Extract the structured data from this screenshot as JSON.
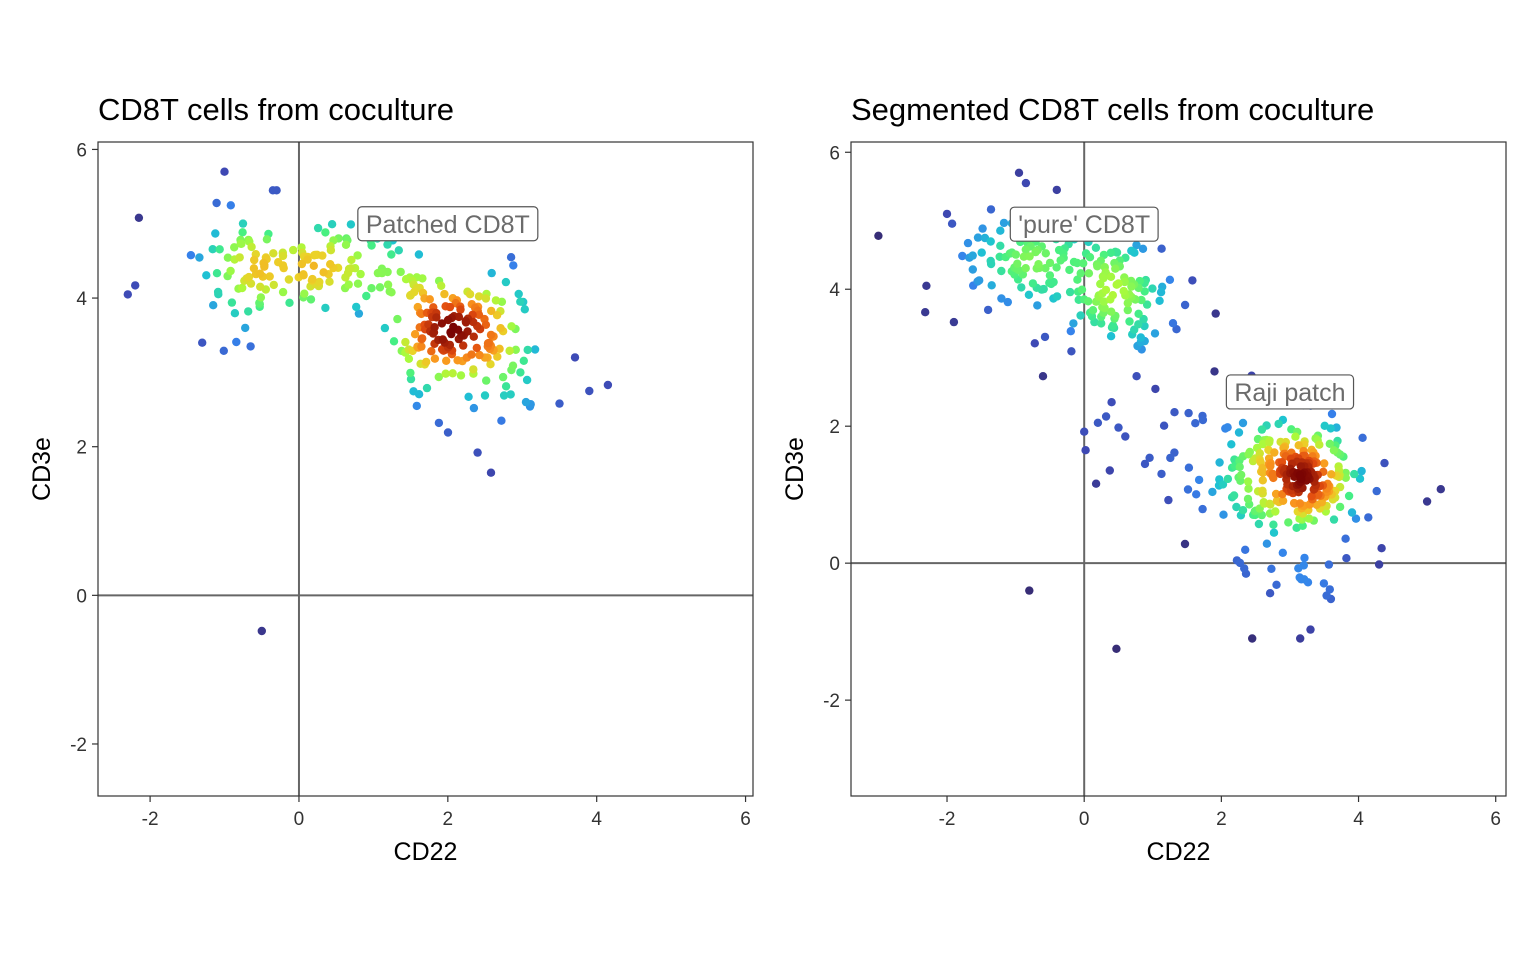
{
  "chart_data": [
    {
      "type": "scatter",
      "title": "CD8T cells from coculture",
      "xlabel": "CD22",
      "ylabel": "CD3e",
      "xlim": [
        -2.7,
        6.1
      ],
      "ylim": [
        -2.7,
        6.1
      ],
      "xticks": [
        -2,
        0,
        2,
        4,
        6
      ],
      "yticks": [
        -2,
        0,
        2,
        4,
        6
      ],
      "xtick_labels": [
        "-2",
        "0",
        "2",
        "4",
        "6"
      ],
      "ytick_labels": [
        "-2",
        "0",
        "2",
        "4",
        "6"
      ],
      "reference_lines": {
        "x": 0,
        "y": 0
      },
      "grid": false,
      "color_scale": "density (turbo: dark blue → green → yellow → red → dark red)",
      "annotations": [
        {
          "text": "Patched CD8T",
          "x": 2.0,
          "y": 5.0
        }
      ],
      "clusters": [
        {
          "center": [
            2.1,
            3.6
          ],
          "sd": [
            0.4,
            0.3
          ],
          "n": 130,
          "seed": 11
        },
        {
          "center": [
            0.5,
            4.4
          ],
          "sd": [
            0.6,
            0.25
          ],
          "n": 90,
          "seed": 12
        },
        {
          "center": [
            -0.8,
            4.4
          ],
          "sd": [
            0.45,
            0.4
          ],
          "n": 60,
          "seed": 13
        },
        {
          "center": [
            2.4,
            3.0
          ],
          "sd": [
            0.6,
            0.3
          ],
          "n": 40,
          "seed": 14
        }
      ],
      "outliers": [
        [
          -2.3,
          4.05
        ],
        [
          -2.2,
          4.17
        ],
        [
          -2.15,
          5.08
        ],
        [
          -1.0,
          5.7
        ],
        [
          -0.35,
          5.45
        ],
        [
          -0.3,
          5.45
        ],
        [
          -1.3,
          3.4
        ],
        [
          -0.65,
          3.35
        ],
        [
          1.88,
          2.32
        ],
        [
          2.4,
          1.92
        ],
        [
          2.58,
          1.65
        ],
        [
          2.72,
          2.35
        ],
        [
          -0.5,
          -0.48
        ],
        [
          2.85,
          4.55
        ],
        [
          2.88,
          4.44
        ],
        [
          3.5,
          2.58
        ],
        [
          3.9,
          2.75
        ],
        [
          4.15,
          2.83
        ],
        [
          3.05,
          2.6
        ],
        [
          2.35,
          2.52
        ]
      ]
    },
    {
      "type": "scatter",
      "title": "Segmented CD8T cells from coculture",
      "xlabel": "CD22",
      "ylabel": "CD3e",
      "xlim": [
        -3.4,
        6.15
      ],
      "ylim": [
        -3.4,
        6.15
      ],
      "xticks": [
        -2,
        0,
        2,
        4,
        6
      ],
      "yticks": [
        -2,
        0,
        2,
        4,
        6
      ],
      "xtick_labels": [
        "-2",
        "0",
        "2",
        "4",
        "6"
      ],
      "ytick_labels": [
        "-2",
        "0",
        "2",
        "4",
        "6"
      ],
      "reference_lines": {
        "x": 0,
        "y": 0
      },
      "grid": false,
      "color_scale": "density (turbo: dark blue → green → yellow → red → dark red)",
      "annotations": [
        {
          "text": "'pure' CD8T",
          "x": 0.0,
          "y": 4.95
        },
        {
          "text": "Raji patch",
          "x": 3.0,
          "y": 2.5
        }
      ],
      "clusters": [
        {
          "center": [
            3.1,
            1.25
          ],
          "sd": [
            0.5,
            0.42
          ],
          "n": 230,
          "seed": 21
        },
        {
          "center": [
            0.35,
            4.0
          ],
          "sd": [
            0.5,
            0.38
          ],
          "n": 120,
          "seed": 22
        },
        {
          "center": [
            -0.9,
            4.45
          ],
          "sd": [
            0.55,
            0.35
          ],
          "n": 90,
          "seed": 23
        },
        {
          "center": [
            2.0,
            1.5
          ],
          "sd": [
            0.9,
            0.6
          ],
          "n": 50,
          "seed": 24
        },
        {
          "center": [
            2.9,
            -0.2
          ],
          "sd": [
            0.5,
            0.22
          ],
          "n": 22,
          "seed": 25
        }
      ],
      "outliers": [
        [
          -3.0,
          4.78
        ],
        [
          -2.3,
          4.05
        ],
        [
          -2.0,
          5.1
        ],
        [
          -1.9,
          3.52
        ],
        [
          -0.95,
          5.7
        ],
        [
          -0.85,
          5.55
        ],
        [
          -0.4,
          5.45
        ],
        [
          -0.6,
          2.73
        ],
        [
          -0.8,
          -0.4
        ],
        [
          0.0,
          1.92
        ],
        [
          0.02,
          1.65
        ],
        [
          0.2,
          2.05
        ],
        [
          0.4,
          2.35
        ],
        [
          0.6,
          1.85
        ],
        [
          0.5,
          1.98
        ],
        [
          0.47,
          -1.25
        ],
        [
          1.9,
          2.8
        ],
        [
          2.45,
          -1.1
        ],
        [
          3.15,
          -1.1
        ],
        [
          3.3,
          -0.97
        ],
        [
          5.0,
          0.9
        ],
        [
          5.2,
          1.08
        ],
        [
          4.3,
          -0.02
        ],
        [
          1.47,
          0.28
        ]
      ]
    }
  ]
}
